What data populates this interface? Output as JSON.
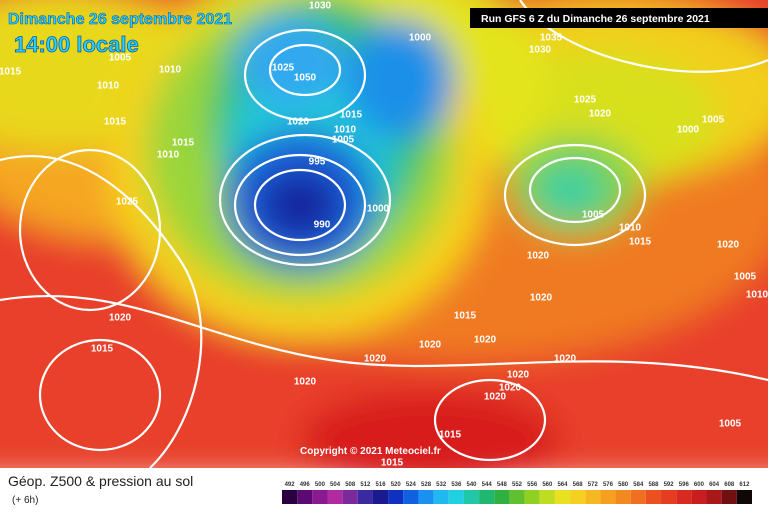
{
  "header": {
    "date": "Dimanche 26 septembre 2021",
    "time": "14:00 locale",
    "run": "Run GFS 6 Z du Dimanche 26 septembre 2021"
  },
  "copyright": "Copyright © 2021 Meteociel.fr",
  "legend": {
    "title": "Géop. Z500 & pression au sol",
    "subtitle": "(+ 6h)",
    "scale": [
      492,
      496,
      500,
      504,
      508,
      512,
      516,
      520,
      524,
      528,
      532,
      536,
      540,
      544,
      548,
      552,
      556,
      560,
      564,
      568,
      572,
      576,
      580,
      584,
      588,
      592,
      596,
      600,
      604,
      608,
      612
    ]
  },
  "isobars": [
    1030,
    1000,
    1035,
    1030,
    1005,
    1015,
    1010,
    1010,
    1025,
    1050,
    1025,
    1020,
    1005,
    1000,
    1015,
    1020,
    1015,
    1010,
    1005,
    1015,
    1010,
    995,
    1025,
    990,
    1000,
    1005,
    1010,
    1015,
    1020,
    1020,
    1005,
    1010,
    1020,
    1015,
    1020,
    1020,
    1020,
    1020,
    1015,
    1020,
    1020,
    1020,
    1020,
    1020,
    1005,
    1015,
    1015
  ]
}
